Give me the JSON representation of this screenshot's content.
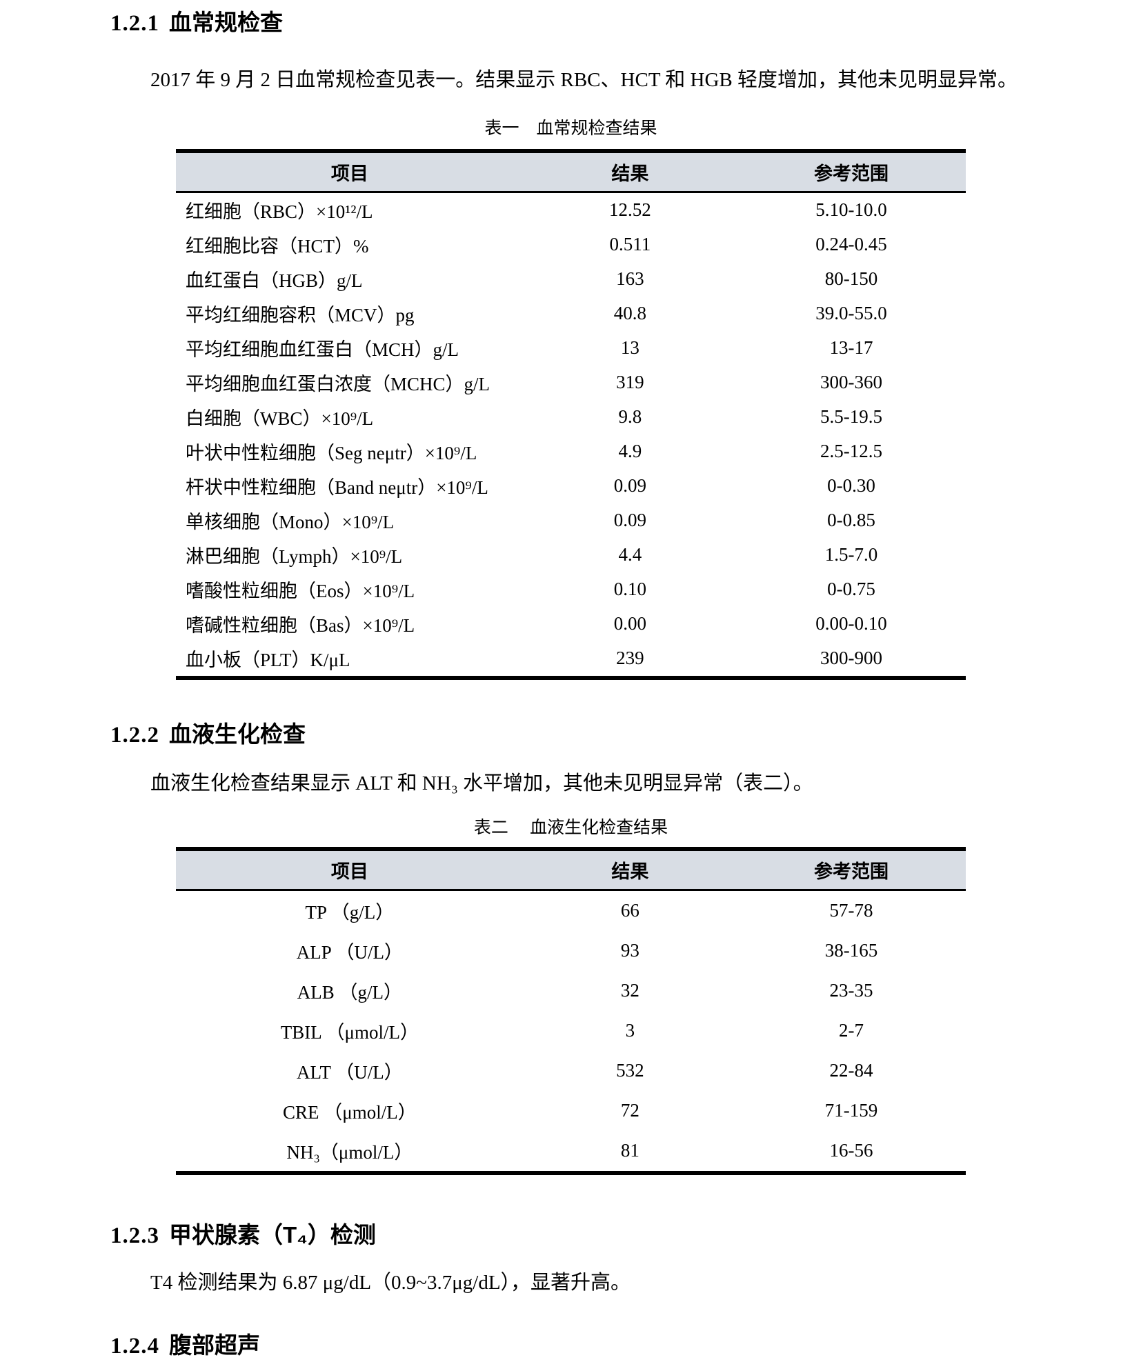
{
  "colors": {
    "header_band": "#d8dde4",
    "text": "#000000",
    "border": "#000000"
  },
  "sections": {
    "s121": {
      "number": "1.2.1",
      "title": "血常规检查",
      "paragraph": "2017 年 9 月 2 日血常规检查见表一。结果显示 RBC、HCT 和 HGB 轻度增加，其他未见明显异常。"
    },
    "s122": {
      "number": "1.2.2",
      "title": "血液生化检查",
      "paragraph": "血液生化检查结果显示 ALT 和 NH₃ 水平增加，其他未见明显异常（表二）。"
    },
    "s123": {
      "number": "1.2.3",
      "title": "甲状腺素（T₄）检测",
      "paragraph": "T4 检测结果为 6.87 μg/dL（0.9~3.7μg/dL），显著升高。"
    },
    "s124": {
      "number": "1.2.4",
      "title": "腹部超声"
    }
  },
  "table1": {
    "caption": "表一　血常规检查结果",
    "headers": [
      "项目",
      "结果",
      "参考范围"
    ],
    "rows": [
      [
        "红细胞（RBC）×10¹²/L",
        "12.52",
        "5.10-10.0"
      ],
      [
        "红细胞比容（HCT）%",
        "0.511",
        "0.24-0.45"
      ],
      [
        "血红蛋白（HGB）g/L",
        "163",
        "80-150"
      ],
      [
        "平均红细胞容积（MCV）pg",
        "40.8",
        "39.0-55.0"
      ],
      [
        "平均红细胞血红蛋白（MCH）g/L",
        "13",
        "13-17"
      ],
      [
        "平均细胞血红蛋白浓度（MCHC）g/L",
        "319",
        "300-360"
      ],
      [
        "白细胞（WBC）×10⁹/L",
        "9.8",
        "5.5-19.5"
      ],
      [
        "叶状中性粒细胞（Seg neμtr）×10⁹/L",
        "4.9",
        "2.5-12.5"
      ],
      [
        "杆状中性粒细胞（Band neμtr）×10⁹/L",
        "0.09",
        "0-0.30"
      ],
      [
        "单核细胞（Mono）×10⁹/L",
        "0.09",
        "0-0.85"
      ],
      [
        "淋巴细胞（Lymph）×10⁹/L",
        "4.4",
        "1.5-7.0"
      ],
      [
        "嗜酸性粒细胞（Eos）×10⁹/L",
        "0.10",
        "0-0.75"
      ],
      [
        "嗜碱性粒细胞（Bas）×10⁹/L",
        "0.00",
        "0.00-0.10"
      ],
      [
        "血小板（PLT）K/μL",
        "239",
        "300-900"
      ]
    ]
  },
  "table2": {
    "caption": "表二　 血液生化检查结果",
    "headers": [
      "项目",
      "结果",
      "参考范围"
    ],
    "rows": [
      [
        "TP （g/L）",
        "66",
        "57-78"
      ],
      [
        "ALP （U/L）",
        "93",
        "38-165"
      ],
      [
        "ALB （g/L）",
        "32",
        "23-35"
      ],
      [
        "TBIL （μmol/L）",
        "3",
        "2-7"
      ],
      [
        "ALT （U/L）",
        "532",
        "22-84"
      ],
      [
        "CRE （μmol/L）",
        "72",
        "71-159"
      ],
      [
        "NH₃（μmol/L）",
        "81",
        "16-56"
      ]
    ]
  }
}
